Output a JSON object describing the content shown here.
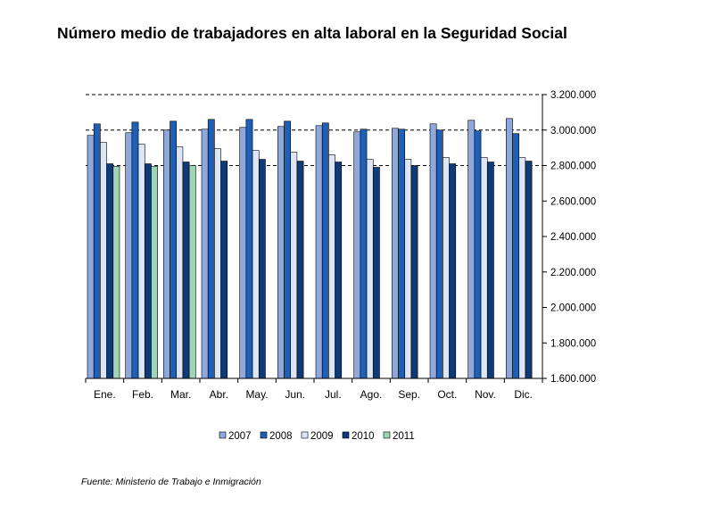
{
  "title": "Número medio de trabajadores en alta laboral en la Seguridad Social",
  "source": "Fuente: Ministerio de Trabajo e Inmigración",
  "chart_data": {
    "type": "bar",
    "title": "Número medio de trabajadores en alta laboral en la Seguridad Social",
    "xlabel": "",
    "ylabel": "",
    "ylim": [
      1600000,
      3200000
    ],
    "yticks": [
      1600000,
      1800000,
      2000000,
      2200000,
      2400000,
      2600000,
      2800000,
      3000000,
      3200000
    ],
    "ytick_labels": [
      "1.600.000",
      "1.800.000",
      "2.000.000",
      "2.200.000",
      "2.400.000",
      "2.600.000",
      "2.800.000",
      "3.000.000",
      "3.200.000"
    ],
    "y_axis_side": "right",
    "grid": "dashed horizontal lines at 2.800.000, 3.000.000 and 3.200.000",
    "legend_position": "bottom",
    "categories": [
      "Ene.",
      "Feb.",
      "Mar.",
      "Abr.",
      "May.",
      "Jun.",
      "Jul.",
      "Ago.",
      "Sep.",
      "Oct.",
      "Nov.",
      "Dic."
    ],
    "series": [
      {
        "name": "2007",
        "color": "#8ea8dc",
        "values": [
          2970000,
          2985000,
          3000000,
          3005000,
          3015000,
          3020000,
          3025000,
          2990000,
          3010000,
          3035000,
          3055000,
          3065000
        ]
      },
      {
        "name": "2008",
        "color": "#1f5fb4",
        "values": [
          3035000,
          3045000,
          3050000,
          3060000,
          3060000,
          3050000,
          3040000,
          3005000,
          3005000,
          3000000,
          2995000,
          2980000
        ]
      },
      {
        "name": "2009",
        "color": "#dce6f4",
        "values": [
          2930000,
          2920000,
          2905000,
          2895000,
          2885000,
          2875000,
          2860000,
          2835000,
          2835000,
          2845000,
          2845000,
          2845000
        ]
      },
      {
        "name": "2010",
        "color": "#0e3a78",
        "values": [
          2810000,
          2810000,
          2820000,
          2825000,
          2835000,
          2825000,
          2820000,
          2790000,
          2800000,
          2810000,
          2820000,
          2825000
        ]
      },
      {
        "name": "2011",
        "color": "#9fd4b8",
        "values": [
          2795000,
          2795000,
          2800000,
          null,
          null,
          null,
          null,
          null,
          null,
          null,
          null,
          null
        ]
      }
    ]
  }
}
